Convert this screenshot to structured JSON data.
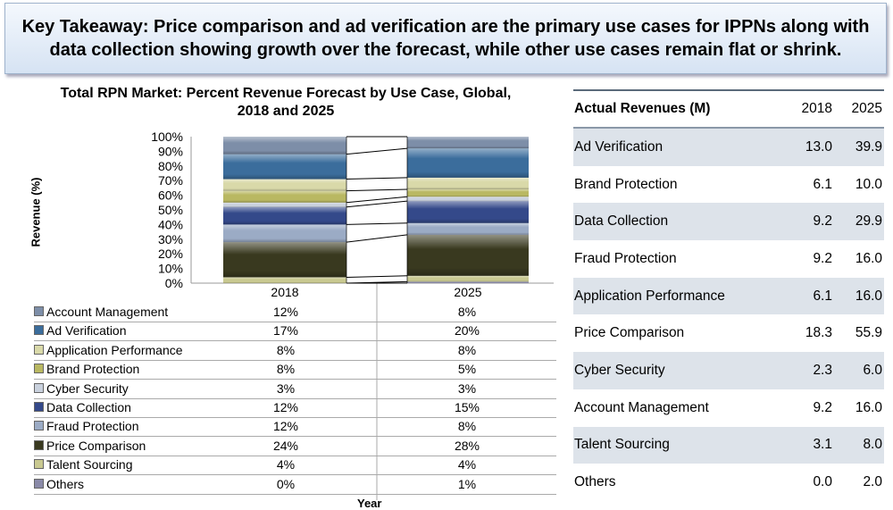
{
  "banner": {
    "text": "Key Takeaway: Price comparison and ad verification are the primary use cases for IPPNs along with data collection showing growth over the forecast, while other use cases remain flat or shrink."
  },
  "chart_data": {
    "type": "bar",
    "stacked": true,
    "title": "Total RPN Market: Percent Revenue Forecast by Use Case, Global, 2018 and 2025",
    "xlabel": "Year",
    "ylabel": "Revenue (%)",
    "ylim": [
      0,
      100
    ],
    "yticks": [
      "0%",
      "10%",
      "20%",
      "30%",
      "40%",
      "50%",
      "60%",
      "70%",
      "80%",
      "90%",
      "100%"
    ],
    "categories": [
      "2018",
      "2025"
    ],
    "series": [
      {
        "name": "Account Management",
        "values": [
          12,
          8
        ],
        "color": "#7d8ea8"
      },
      {
        "name": "Ad Verification",
        "values": [
          17,
          20
        ],
        "color": "#3b6d9c"
      },
      {
        "name": "Application Performance",
        "values": [
          8,
          8
        ],
        "color": "#d9d9a9"
      },
      {
        "name": "Brand Protection",
        "values": [
          8,
          5
        ],
        "color": "#b9b862"
      },
      {
        "name": "Cyber Security",
        "values": [
          3,
          3
        ],
        "color": "#c9d1dd"
      },
      {
        "name": "Data Collection",
        "values": [
          12,
          15
        ],
        "color": "#34498a"
      },
      {
        "name": "Fraud Protection",
        "values": [
          12,
          8
        ],
        "color": "#9babc5"
      },
      {
        "name": "Price Comparison",
        "values": [
          24,
          28
        ],
        "color": "#39391f"
      },
      {
        "name": "Talent Sourcing",
        "values": [
          4,
          4
        ],
        "color": "#c9c991"
      },
      {
        "name": "Others",
        "values": [
          0,
          1
        ],
        "color": "#8a8aa8"
      }
    ],
    "table_values": [
      [
        "12%",
        "8%"
      ],
      [
        "17%",
        "20%"
      ],
      [
        "8%",
        "8%"
      ],
      [
        "8%",
        "5%"
      ],
      [
        "3%",
        "3%"
      ],
      [
        "12%",
        "15%"
      ],
      [
        "12%",
        "8%"
      ],
      [
        "24%",
        "28%"
      ],
      [
        "4%",
        "4%"
      ],
      [
        "0%",
        "1%"
      ]
    ]
  },
  "revenues": {
    "header": {
      "label": "Actual Revenues (M)",
      "y1": "2018",
      "y2": "2025"
    },
    "rows": [
      {
        "name": "Ad Verification",
        "v1": "13.0",
        "v2": "39.9"
      },
      {
        "name": "Brand Protection",
        "v1": "6.1",
        "v2": "10.0"
      },
      {
        "name": "Data Collection",
        "v1": "9.2",
        "v2": "29.9"
      },
      {
        "name": "Fraud Protection",
        "v1": "9.2",
        "v2": "16.0"
      },
      {
        "name": "Application Performance",
        "v1": "6.1",
        "v2": "16.0"
      },
      {
        "name": "Price Comparison",
        "v1": "18.3",
        "v2": "55.9"
      },
      {
        "name": "Cyber Security",
        "v1": "2.3",
        "v2": "6.0"
      },
      {
        "name": "Account Management",
        "v1": "9.2",
        "v2": "16.0"
      },
      {
        "name": "Talent Sourcing",
        "v1": "3.1",
        "v2": "8.0"
      },
      {
        "name": "Others",
        "v1": "0.0",
        "v2": "2.0"
      }
    ]
  }
}
